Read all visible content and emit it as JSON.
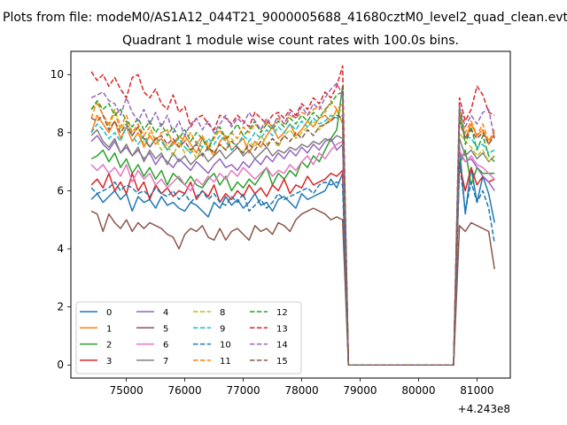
{
  "chart_data": {
    "type": "line",
    "suptitle": "Plots from file: modeM0/AS1A12_044T21_9000005688_41680cztM0_level2_quad_clean.evt",
    "title": "Quadrant 1 module wise count rates with 100.0s bins.",
    "xlabel": "",
    "ylabel": "",
    "x_offset_text": "+4.243e8",
    "xlim": [
      74050,
      81570
    ],
    "ylim": [
      -0.45,
      10.8
    ],
    "xticks": [
      75000,
      76000,
      77000,
      78000,
      79000,
      80000,
      81000
    ],
    "yticks": [
      0,
      2,
      4,
      6,
      8,
      10
    ],
    "grid": false,
    "legend": {
      "placement": "lower-left",
      "ncol": 4
    },
    "x_groups": {
      "a_start": 74400,
      "a_step": 100,
      "a_count": 44,
      "gap_points": [
        78800,
        80600
      ],
      "b_start": 80700,
      "b_step": 100,
      "b_count": 7
    },
    "series": [
      {
        "name": "0",
        "color": "#1f77b4",
        "dash": "solid",
        "a": [
          5.7,
          5.9,
          5.6,
          5.8,
          6.0,
          5.7,
          5.9,
          5.3,
          5.8,
          5.6,
          5.7,
          5.4,
          5.8,
          5.5,
          5.6,
          5.4,
          5.3,
          5.6,
          5.5,
          5.3,
          5.1,
          5.6,
          5.4,
          5.8,
          5.5,
          5.7,
          5.4,
          5.6,
          5.9,
          5.5,
          5.6,
          5.3,
          5.7,
          5.8,
          5.6,
          5.4,
          5.9,
          5.7,
          5.8,
          5.9,
          6.0,
          6.4,
          6.1,
          6.6
        ],
        "b": [
          7.5,
          5.2,
          6.8,
          5.6,
          6.5,
          5.9,
          4.9
        ]
      },
      {
        "name": "1",
        "color": "#ff7f0e",
        "dash": "solid",
        "a": [
          8.0,
          8.6,
          8.3,
          8.0,
          8.4,
          7.8,
          8.2,
          7.7,
          8.0,
          7.5,
          7.9,
          7.6,
          7.8,
          7.4,
          7.7,
          7.5,
          7.9,
          7.6,
          7.3,
          7.8,
          7.5,
          7.2,
          7.7,
          7.9,
          7.4,
          7.6,
          7.8,
          7.3,
          7.7,
          7.5,
          7.9,
          8.2,
          7.8,
          8.0,
          8.3,
          7.9,
          8.1,
          8.4,
          8.2,
          8.5,
          8.6,
          8.4,
          8.8,
          8.3
        ],
        "b": [
          8.6,
          7.8,
          8.3,
          7.9,
          8.1,
          7.6,
          8.0
        ]
      },
      {
        "name": "2",
        "color": "#2ca02c",
        "dash": "solid",
        "a": [
          7.1,
          7.2,
          7.4,
          7.0,
          7.3,
          6.8,
          7.1,
          6.6,
          6.9,
          6.5,
          6.8,
          6.4,
          6.7,
          6.2,
          6.6,
          6.4,
          6.2,
          6.5,
          6.2,
          6.1,
          6.4,
          6.6,
          6.2,
          6.5,
          6.0,
          6.3,
          6.1,
          6.4,
          6.2,
          6.5,
          6.8,
          6.2,
          6.6,
          6.4,
          6.7,
          6.5,
          7.0,
          6.8,
          7.2,
          7.0,
          7.4,
          7.8,
          8.1,
          9.6
        ],
        "b": [
          6.9,
          7.4,
          6.2,
          6.8,
          6.6,
          6.6,
          6.6
        ]
      },
      {
        "name": "3",
        "color": "#d62728",
        "dash": "solid",
        "a": [
          6.2,
          6.4,
          6.1,
          6.6,
          6.0,
          6.3,
          5.9,
          6.6,
          6.0,
          6.3,
          5.7,
          6.2,
          5.9,
          6.1,
          5.8,
          6.0,
          5.9,
          6.3,
          5.7,
          6.0,
          5.8,
          6.2,
          5.6,
          5.9,
          5.7,
          6.0,
          5.8,
          6.2,
          5.9,
          6.1,
          5.8,
          6.2,
          6.0,
          6.4,
          5.9,
          6.2,
          6.1,
          6.5,
          6.2,
          6.3,
          6.4,
          6.6,
          6.5,
          6.7
        ],
        "b": [
          6.9,
          6.0,
          6.8,
          6.2,
          6.5,
          6.3,
          6.4
        ]
      },
      {
        "name": "4",
        "color": "#9467bd",
        "dash": "solid",
        "a": [
          7.7,
          7.9,
          7.6,
          7.4,
          7.7,
          7.3,
          7.5,
          7.2,
          7.4,
          7.1,
          7.3,
          6.9,
          7.2,
          7.0,
          6.8,
          7.1,
          6.9,
          6.7,
          7.0,
          6.8,
          6.6,
          6.9,
          7.1,
          6.8,
          6.9,
          6.7,
          7.0,
          6.8,
          7.1,
          6.9,
          7.2,
          7.0,
          7.3,
          7.1,
          7.4,
          7.2,
          7.5,
          7.3,
          7.6,
          7.4,
          7.7,
          7.8,
          7.4,
          7.6
        ],
        "b": [
          7.3,
          7.0,
          7.1,
          6.8,
          6.5,
          6.3,
          6.0
        ]
      },
      {
        "name": "5",
        "color": "#8c564b",
        "dash": "solid",
        "a": [
          5.3,
          5.2,
          4.6,
          5.2,
          4.9,
          4.7,
          5.0,
          4.6,
          4.9,
          4.7,
          4.9,
          4.8,
          4.7,
          4.5,
          4.4,
          4.0,
          4.5,
          4.7,
          4.6,
          4.8,
          4.4,
          4.3,
          4.7,
          4.3,
          4.6,
          4.7,
          4.5,
          4.3,
          4.8,
          4.6,
          4.7,
          4.5,
          4.9,
          4.8,
          4.6,
          5.0,
          5.2,
          5.3,
          5.4,
          5.3,
          5.2,
          5.0,
          5.1,
          5.0
        ],
        "b": [
          4.8,
          4.6,
          4.9,
          4.8,
          4.7,
          4.6,
          3.3
        ]
      },
      {
        "name": "6",
        "color": "#e377c2",
        "dash": "solid",
        "a": [
          6.9,
          6.7,
          6.9,
          6.6,
          6.8,
          6.5,
          6.9,
          6.3,
          6.7,
          6.4,
          6.6,
          6.2,
          6.4,
          6.1,
          6.3,
          6.5,
          6.2,
          6.0,
          6.4,
          6.2,
          6.5,
          6.3,
          6.6,
          6.4,
          6.7,
          6.5,
          6.8,
          6.6,
          6.4,
          6.6,
          6.8,
          6.5,
          6.7,
          6.6,
          6.9,
          6.7,
          7.0,
          7.2,
          6.9,
          7.3,
          7.1,
          7.4,
          7.6,
          7.7
        ],
        "b": [
          7.4,
          7.0,
          7.2,
          6.9,
          6.8,
          6.6,
          6.4
        ]
      },
      {
        "name": "7",
        "color": "#7f7f7f",
        "dash": "solid",
        "a": [
          7.9,
          8.1,
          7.7,
          7.5,
          7.8,
          7.3,
          7.6,
          7.2,
          7.5,
          7.0,
          7.4,
          7.1,
          7.3,
          6.9,
          7.3,
          7.0,
          7.2,
          6.9,
          7.1,
          7.3,
          7.0,
          7.2,
          7.4,
          7.1,
          7.3,
          7.5,
          7.2,
          7.4,
          7.1,
          7.3,
          7.5,
          7.2,
          7.4,
          7.3,
          7.5,
          7.4,
          7.6,
          7.5,
          7.7,
          7.6,
          7.8,
          7.7,
          7.9,
          7.8
        ],
        "b": [
          7.8,
          7.2,
          7.4,
          7.1,
          7.3,
          7.0,
          7.2
        ]
      },
      {
        "name": "8",
        "color": "#bcbd22",
        "dash": "dashed",
        "a": [
          8.8,
          9.0,
          8.6,
          8.2,
          8.7,
          8.1,
          8.4,
          7.9,
          8.2,
          7.6,
          8.0,
          7.8,
          7.4,
          7.6,
          7.2,
          7.7,
          7.3,
          7.5,
          7.1,
          7.5,
          7.7,
          7.3,
          7.6,
          7.4,
          7.8,
          7.5,
          7.3,
          7.7,
          7.5,
          7.9,
          7.6,
          7.8,
          7.5,
          7.9,
          8.1,
          7.8,
          8.0,
          8.2,
          8.4,
          8.1,
          8.3,
          8.5,
          8.7,
          8.8
        ],
        "b": [
          8.0,
          7.7,
          7.5,
          7.2,
          7.4,
          7.0,
          7.2
        ]
      },
      {
        "name": "9",
        "color": "#17becf",
        "dash": "dashed",
        "a": [
          8.0,
          8.3,
          8.1,
          7.8,
          8.0,
          7.7,
          8.2,
          7.9,
          7.6,
          7.9,
          7.5,
          7.8,
          7.7,
          7.4,
          7.6,
          7.8,
          7.5,
          7.3,
          7.7,
          7.5,
          7.8,
          7.6,
          7.9,
          7.7,
          7.4,
          7.6,
          7.9,
          7.7,
          8.0,
          7.8,
          8.1,
          7.9,
          8.2,
          8.0,
          8.3,
          8.1,
          8.4,
          8.2,
          8.5,
          8.3,
          8.4,
          8.6,
          8.5,
          8.6
        ],
        "b": [
          8.5,
          7.9,
          7.8,
          7.5,
          7.6,
          7.3,
          7.4
        ]
      },
      {
        "name": "10",
        "color": "#1f77b4",
        "dash": "dashed",
        "a": [
          6.1,
          5.9,
          6.0,
          6.1,
          6.3,
          6.0,
          6.2,
          6.1,
          5.9,
          6.0,
          5.8,
          6.1,
          5.9,
          5.8,
          6.0,
          5.7,
          5.9,
          5.6,
          5.8,
          6.0,
          5.7,
          5.9,
          5.6,
          5.5,
          5.8,
          5.6,
          5.9,
          5.3,
          5.5,
          5.7,
          5.4,
          5.6,
          5.9,
          5.7,
          5.8,
          5.9,
          6.0,
          6.1,
          5.9,
          6.2,
          6.3,
          6.2,
          6.3,
          6.2
        ],
        "b": [
          7.0,
          5.3,
          6.3,
          5.6,
          6.0,
          5.4,
          4.2
        ]
      },
      {
        "name": "11",
        "color": "#ff7f0e",
        "dash": "dashed",
        "a": [
          8.5,
          9.1,
          8.6,
          8.3,
          8.8,
          8.2,
          8.6,
          8.0,
          8.3,
          7.9,
          8.2,
          7.7,
          8.0,
          8.1,
          7.6,
          7.9,
          7.7,
          8.0,
          7.6,
          7.9,
          7.5,
          7.8,
          8.1,
          7.7,
          8.0,
          7.8,
          8.2,
          8.0,
          8.3,
          8.1,
          8.4,
          8.2,
          8.5,
          8.3,
          8.6,
          8.5,
          8.7,
          8.6,
          8.8,
          8.9,
          8.7,
          9.1,
          8.8,
          9.0
        ],
        "b": [
          8.8,
          8.0,
          8.4,
          7.9,
          8.3,
          7.7,
          8.1
        ]
      },
      {
        "name": "12",
        "color": "#2ca02c",
        "dash": "dashed",
        "a": [
          8.8,
          9.1,
          8.8,
          9.0,
          8.6,
          8.8,
          8.4,
          8.2,
          8.5,
          8.1,
          8.4,
          8.0,
          8.3,
          7.9,
          8.2,
          7.8,
          8.1,
          7.7,
          8.0,
          7.8,
          7.4,
          7.9,
          8.2,
          7.8,
          8.0,
          8.3,
          7.9,
          8.1,
          8.4,
          8.0,
          8.3,
          8.1,
          8.4,
          8.2,
          8.5,
          8.3,
          8.6,
          8.4,
          8.7,
          8.5,
          8.8,
          9.0,
          9.3,
          9.4
        ],
        "b": [
          8.9,
          7.6,
          8.2,
          7.4,
          7.9,
          7.2,
          7.0
        ]
      },
      {
        "name": "13",
        "color": "#d62728",
        "dash": "dashed",
        "a": [
          10.1,
          9.8,
          10.0,
          9.6,
          9.9,
          9.5,
          9.2,
          9.9,
          10.0,
          9.4,
          9.2,
          9.5,
          9.0,
          8.8,
          9.3,
          8.7,
          8.9,
          8.2,
          8.5,
          8.6,
          8.3,
          8.1,
          8.6,
          8.5,
          8.3,
          8.6,
          8.4,
          8.2,
          8.7,
          8.5,
          8.3,
          8.6,
          8.7,
          8.5,
          8.8,
          8.6,
          9.0,
          8.8,
          9.2,
          9.0,
          9.4,
          9.2,
          9.6,
          10.3
        ],
        "b": [
          9.2,
          8.4,
          8.8,
          9.6,
          9.3,
          8.7,
          8.6
        ]
      },
      {
        "name": "14",
        "color": "#9467bd",
        "dash": "dashed",
        "a": [
          9.2,
          9.3,
          9.4,
          9.1,
          9.0,
          8.6,
          9.2,
          8.7,
          8.4,
          8.8,
          8.3,
          8.7,
          8.2,
          8.6,
          8.0,
          8.4,
          7.9,
          8.3,
          8.5,
          8.1,
          8.4,
          8.0,
          8.3,
          8.6,
          8.2,
          8.5,
          8.3,
          8.7,
          8.4,
          8.1,
          8.5,
          8.2,
          8.6,
          8.3,
          8.7,
          8.5,
          8.9,
          8.6,
          9.0,
          8.8,
          9.2,
          9.5,
          9.7,
          9.3
        ],
        "b": [
          8.9,
          8.2,
          8.6,
          8.3,
          8.7,
          8.8,
          7.8
        ]
      },
      {
        "name": "15",
        "color": "#8c564b",
        "dash": "dashed",
        "a": [
          8.5,
          8.4,
          8.6,
          8.1,
          8.4,
          8.0,
          8.3,
          7.9,
          8.2,
          7.8,
          7.5,
          7.8,
          7.9,
          7.6,
          7.8,
          7.5,
          7.7,
          7.4,
          7.6,
          7.2,
          7.5,
          7.3,
          7.6,
          7.4,
          7.7,
          7.5,
          7.3,
          7.6,
          7.4,
          7.7,
          7.5,
          7.8,
          7.6,
          7.9,
          7.7,
          8.0,
          7.8,
          8.1,
          7.9,
          8.2,
          8.3,
          8.4,
          8.6,
          8.5
        ],
        "b": [
          8.4,
          7.8,
          8.1,
          7.8,
          8.0,
          7.6,
          7.9
        ]
      }
    ]
  }
}
